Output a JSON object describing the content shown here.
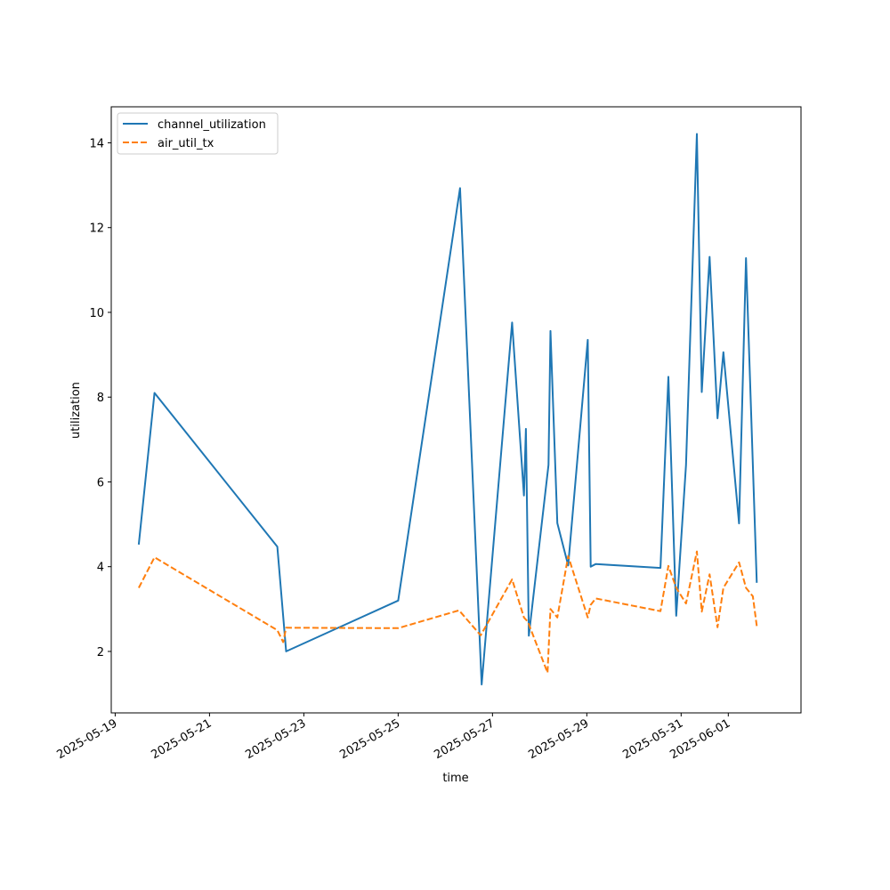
{
  "chart_data": {
    "type": "line",
    "title": "",
    "xlabel": "time",
    "ylabel": "utilization",
    "x_ticks": [
      "2025-05-19",
      "2025-05-21",
      "2025-05-23",
      "2025-05-25",
      "2025-05-27",
      "2025-05-29",
      "2025-05-31",
      "2025-06-01"
    ],
    "y_ticks": [
      2,
      4,
      6,
      8,
      10,
      12,
      14
    ],
    "xlim": [
      "2025-05-18T22:00",
      "2025-06-02T13:00"
    ],
    "ylim": [
      0.55,
      14.85
    ],
    "grid": false,
    "legend_position": "upper-left",
    "series": [
      {
        "name": "channel_utilization",
        "color": "#1f77b4",
        "style": "solid",
        "points": [
          [
            "2025-05-19T12:00",
            4.52
          ],
          [
            "2025-05-19T20:00",
            8.1
          ],
          [
            "2025-05-22T10:30",
            4.47
          ],
          [
            "2025-05-22T15:00",
            2.0
          ],
          [
            "2025-05-25T00:00",
            3.2
          ],
          [
            "2025-05-26T07:30",
            12.93
          ],
          [
            "2025-05-26T18:30",
            1.22
          ],
          [
            "2025-05-27T10:00",
            9.76
          ],
          [
            "2025-05-27T16:00",
            5.68
          ],
          [
            "2025-05-27T17:00",
            7.25
          ],
          [
            "2025-05-27T18:30",
            2.37
          ],
          [
            "2025-05-28T04:30",
            6.4
          ],
          [
            "2025-05-28T05:30",
            9.56
          ],
          [
            "2025-05-28T09:00",
            5.03
          ],
          [
            "2025-05-28T14:30",
            4.03
          ],
          [
            "2025-05-29T00:30",
            9.35
          ],
          [
            "2025-05-29T02:00",
            4.0
          ],
          [
            "2025-05-29T04:30",
            4.06
          ],
          [
            "2025-05-30T13:30",
            3.97
          ],
          [
            "2025-05-30T17:30",
            8.48
          ],
          [
            "2025-05-30T21:30",
            2.84
          ],
          [
            "2025-05-31T02:30",
            6.4
          ],
          [
            "2025-05-31T08:00",
            14.21
          ],
          [
            "2025-05-31T10:30",
            8.12
          ],
          [
            "2025-05-31T14:30",
            11.31
          ],
          [
            "2025-05-31T18:30",
            7.5
          ],
          [
            "2025-05-31T21:30",
            9.06
          ],
          [
            "2025-06-01T05:30",
            5.02
          ],
          [
            "2025-06-01T09:00",
            11.28
          ],
          [
            "2025-06-01T14:30",
            3.62
          ]
        ]
      },
      {
        "name": "air_util_tx",
        "color": "#ff7f0e",
        "style": "dashed",
        "points": [
          [
            "2025-05-19T12:00",
            3.5
          ],
          [
            "2025-05-19T20:00",
            4.22
          ],
          [
            "2025-05-22T10:30",
            2.5
          ],
          [
            "2025-05-22T13:30",
            2.22
          ],
          [
            "2025-05-22T15:00",
            2.56
          ],
          [
            "2025-05-25T00:00",
            2.55
          ],
          [
            "2025-05-26T07:00",
            2.97
          ],
          [
            "2025-05-26T18:00",
            2.38
          ],
          [
            "2025-05-27T10:00",
            3.7
          ],
          [
            "2025-05-27T16:00",
            2.8
          ],
          [
            "2025-05-27T18:00",
            2.7
          ],
          [
            "2025-05-28T04:00",
            1.5
          ],
          [
            "2025-05-28T05:30",
            3.0
          ],
          [
            "2025-05-28T09:00",
            2.8
          ],
          [
            "2025-05-28T14:30",
            4.25
          ],
          [
            "2025-05-29T00:30",
            2.8
          ],
          [
            "2025-05-29T02:00",
            3.1
          ],
          [
            "2025-05-29T04:30",
            3.25
          ],
          [
            "2025-05-30T13:30",
            2.95
          ],
          [
            "2025-05-30T17:30",
            4.02
          ],
          [
            "2025-05-30T21:30",
            3.5
          ],
          [
            "2025-05-31T02:30",
            3.13
          ],
          [
            "2025-05-31T08:00",
            4.36
          ],
          [
            "2025-05-31T10:30",
            2.94
          ],
          [
            "2025-05-31T14:30",
            3.82
          ],
          [
            "2025-05-31T18:30",
            2.57
          ],
          [
            "2025-05-31T21:30",
            3.5
          ],
          [
            "2025-06-01T05:30",
            4.1
          ],
          [
            "2025-06-01T09:00",
            3.5
          ],
          [
            "2025-06-01T12:30",
            3.3
          ],
          [
            "2025-06-01T14:30",
            2.6
          ]
        ]
      }
    ]
  }
}
